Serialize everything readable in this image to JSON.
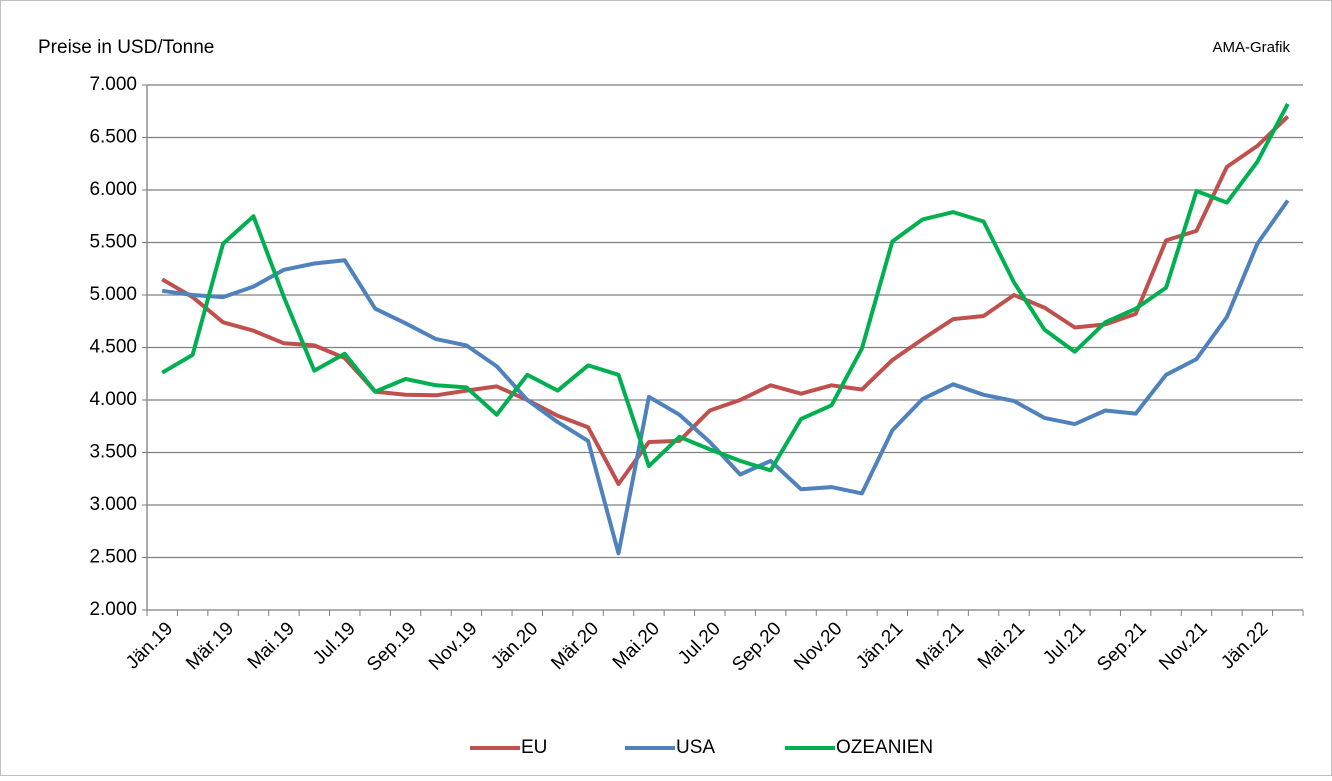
{
  "chart_data": {
    "type": "line",
    "y_label": "Preise in USD/Tonne",
    "annotation": "AMA-Grafik",
    "categories": [
      "Jän.19",
      null,
      "Mär.19",
      null,
      "Mai.19",
      null,
      "Jul.19",
      null,
      "Sep.19",
      null,
      "Nov.19",
      null,
      "Jän.20",
      null,
      "Mär.20",
      null,
      "Mai.20",
      null,
      "Jul.20",
      null,
      "Sep.20",
      null,
      "Nov.20",
      null,
      "Jän.21",
      null,
      "Mär.21",
      null,
      "Mai.21",
      null,
      "Jul.21",
      null,
      "Sep.21",
      null,
      "Nov.21",
      null,
      "Jän.22",
      null
    ],
    "series": [
      {
        "name": "EU",
        "color": "#c0504d",
        "values": [
          5150,
          4980,
          4740,
          4660,
          4540,
          4520,
          4400,
          4080,
          4050,
          4045,
          4090,
          4130,
          4000,
          3850,
          3740,
          3200,
          3600,
          3610,
          3900,
          4000,
          4140,
          4060,
          4140,
          4100,
          4380,
          4580,
          4770,
          4800,
          5000,
          4880,
          4690,
          4720,
          4820,
          5520,
          5610,
          6220,
          6420,
          6700
        ]
      },
      {
        "name": "USA",
        "color": "#4f81bd",
        "values": [
          5040,
          5000,
          4980,
          5080,
          5240,
          5300,
          5330,
          4870,
          4730,
          4580,
          4520,
          4320,
          4000,
          3790,
          3610,
          2540,
          4030,
          3860,
          3600,
          3290,
          3420,
          3150,
          3170,
          3110,
          3710,
          4010,
          4150,
          4050,
          3990,
          3830,
          3770,
          3900,
          3870,
          4240,
          4390,
          4790,
          5490,
          5900
        ]
      },
      {
        "name": "OZEANIEN",
        "color": "#00b050",
        "values": [
          4260,
          4430,
          5490,
          5750,
          4980,
          4280,
          4440,
          4080,
          4200,
          4140,
          4120,
          3860,
          4240,
          4090,
          4330,
          4240,
          3370,
          3650,
          3530,
          3420,
          3330,
          3820,
          3950,
          4490,
          5510,
          5720,
          5790,
          5700,
          5120,
          4670,
          4460,
          4740,
          4870,
          5070,
          5990,
          5880,
          6270,
          6820
        ]
      }
    ],
    "ylim": [
      2000,
      7000
    ],
    "yticks": [
      {
        "value": 2000,
        "label": "2.000"
      },
      {
        "value": 2500,
        "label": "2.500"
      },
      {
        "value": 3000,
        "label": "3.000"
      },
      {
        "value": 3500,
        "label": "3.500"
      },
      {
        "value": 4000,
        "label": "4.000"
      },
      {
        "value": 4500,
        "label": "4.500"
      },
      {
        "value": 5000,
        "label": "5.000"
      },
      {
        "value": 5500,
        "label": "5.500"
      },
      {
        "value": 6000,
        "label": "6.000"
      },
      {
        "value": 6500,
        "label": "6.500"
      },
      {
        "value": 7000,
        "label": "7.000"
      }
    ],
    "grid": true,
    "legend": "bottom"
  }
}
